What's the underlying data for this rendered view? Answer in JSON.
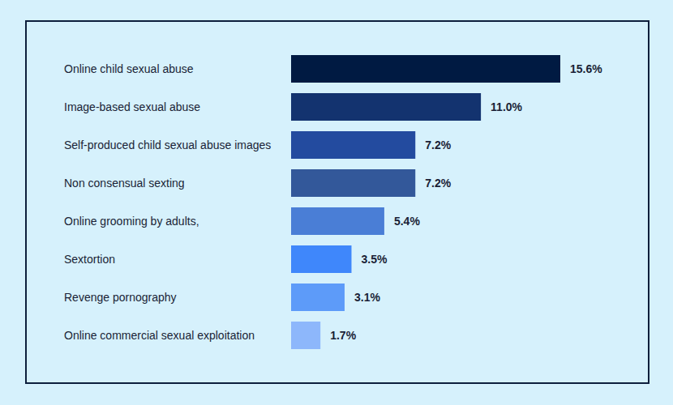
{
  "chart_data": {
    "type": "bar",
    "orientation": "horizontal",
    "categories": [
      "Online child sexual abuse",
      "Image-based sexual abuse",
      "Self-produced child sexual abuse images",
      "Non consensual sexting",
      "Online grooming by adults,",
      "Sextortion",
      "Revenge pornography",
      "Online commercial sexual exploitation"
    ],
    "values": [
      15.6,
      11.0,
      7.2,
      7.2,
      5.4,
      3.5,
      3.1,
      1.7
    ],
    "value_labels": [
      "15.6%",
      "11.0%",
      "7.2%",
      "7.2%",
      "5.4%",
      "3.5%",
      "3.1%",
      "1.7%"
    ],
    "colors": [
      "#001a42",
      "#13336f",
      "#234b9f",
      "#33589a",
      "#4a7ed6",
      "#3f87fb",
      "#5d9bf9",
      "#8db7fb"
    ],
    "data_labels": true,
    "tick_labels": false,
    "grid": false
  }
}
